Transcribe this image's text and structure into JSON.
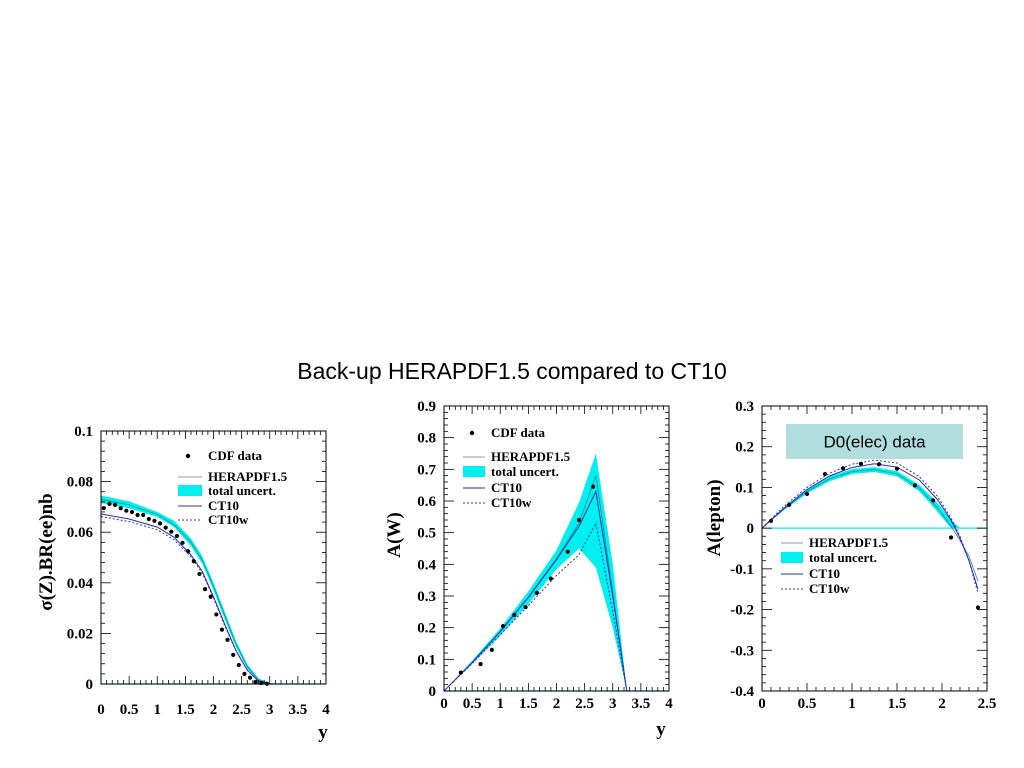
{
  "page": {
    "title": "Back-up HERAPDF1.5 compared to CT10"
  },
  "colors": {
    "band": "#00f0f0",
    "hera_line": "#1a8a8a",
    "ct10": "#2b2bb0",
    "ct10w": "#3030c0",
    "data": "#000000",
    "box": "#b0dede"
  },
  "chart_data": [
    {
      "type": "line",
      "ylabel": "σ(Z).BR(ee)nb",
      "xlabel": "y",
      "xlim": [
        0,
        4
      ],
      "ylim": [
        0,
        0.1
      ],
      "xticks": [
        0,
        0.5,
        1,
        1.5,
        2,
        2.5,
        3,
        3.5,
        4
      ],
      "xtick_labels": [
        "0",
        "0.5",
        "1",
        "1.5",
        "2",
        "2.5",
        "3",
        "3.5",
        "4"
      ],
      "yticks": [
        0,
        0.02,
        0.04,
        0.06,
        0.08,
        0.1
      ],
      "ytick_labels": [
        "0",
        "0.02",
        "0.04",
        "0.06",
        "0.08",
        "0.1"
      ],
      "legend": {
        "position": "top-right",
        "entries": [
          "CDF data",
          "HERAPDF1.5",
          "total uncert.",
          "CT10",
          "CT10w"
        ]
      },
      "band": {
        "x": [
          0,
          0.5,
          1,
          1.3,
          1.6,
          1.8,
          2.0,
          2.2,
          2.4,
          2.6,
          2.8,
          3.0,
          3.2,
          4.0
        ],
        "lower": [
          0.0715,
          0.0695,
          0.066,
          0.062,
          0.0545,
          0.0475,
          0.037,
          0.0255,
          0.0145,
          0.006,
          0.0012,
          0.0,
          0.0,
          0.0
        ],
        "upper": [
          0.0745,
          0.0722,
          0.068,
          0.0645,
          0.0575,
          0.0505,
          0.04,
          0.0285,
          0.017,
          0.0078,
          0.0022,
          0.0003,
          0.0,
          0.0
        ]
      },
      "series": [
        {
          "name": "HERAPDF1.5",
          "kind": "line",
          "x": [
            0,
            0.5,
            1,
            1.3,
            1.6,
            1.8,
            2.0,
            2.2,
            2.4,
            2.6,
            2.8,
            3.0,
            3.2,
            4.0
          ],
          "y": [
            0.073,
            0.0708,
            0.067,
            0.063,
            0.056,
            0.049,
            0.0385,
            0.027,
            0.0158,
            0.0069,
            0.0017,
            0.0001,
            0.0,
            0.0
          ]
        },
        {
          "name": "CT10",
          "kind": "line",
          "x": [
            0,
            0.5,
            1,
            1.3,
            1.6,
            1.8,
            2.0,
            2.2,
            2.4,
            2.6,
            2.8,
            3.0,
            3.2,
            4.0
          ],
          "y": [
            0.0672,
            0.0652,
            0.062,
            0.058,
            0.051,
            0.0445,
            0.0345,
            0.0235,
            0.0132,
            0.0055,
            0.0011,
            0.0,
            0.0,
            0.0
          ]
        },
        {
          "name": "CT10w",
          "kind": "dashed",
          "x": [
            0,
            0.5,
            1,
            1.3,
            1.6,
            1.8,
            2.0,
            2.2,
            2.4,
            2.6,
            2.8,
            3.0,
            3.2,
            4.0
          ],
          "y": [
            0.0662,
            0.0642,
            0.061,
            0.057,
            0.0502,
            0.0438,
            0.034,
            0.023,
            0.013,
            0.0054,
            0.0011,
            0.0,
            0.0,
            0.0
          ]
        },
        {
          "name": "CDF data",
          "kind": "points",
          "x": [
            0.05,
            0.15,
            0.25,
            0.35,
            0.45,
            0.55,
            0.65,
            0.75,
            0.85,
            0.95,
            1.05,
            1.15,
            1.25,
            1.35,
            1.45,
            1.55,
            1.65,
            1.75,
            1.85,
            1.95,
            2.05,
            2.15,
            2.25,
            2.35,
            2.45,
            2.55,
            2.65,
            2.75,
            2.85,
            2.95
          ],
          "y": [
            0.0695,
            0.0712,
            0.0708,
            0.0695,
            0.0685,
            0.068,
            0.0668,
            0.0668,
            0.0652,
            0.0645,
            0.0635,
            0.0618,
            0.0602,
            0.0585,
            0.0558,
            0.0525,
            0.0485,
            0.0435,
            0.0375,
            0.0345,
            0.0275,
            0.0215,
            0.0175,
            0.0115,
            0.0075,
            0.004,
            0.0025,
            0.0008,
            0.0004,
            0.0001
          ]
        }
      ]
    },
    {
      "type": "line",
      "ylabel": "A(W)",
      "xlabel": "y",
      "xlim": [
        0,
        4
      ],
      "ylim": [
        0,
        0.9
      ],
      "xticks": [
        0,
        0.5,
        1,
        1.5,
        2,
        2.5,
        3,
        3.5,
        4
      ],
      "xtick_labels": [
        "0",
        "0.5",
        "1",
        "1.5",
        "2",
        "2.5",
        "3",
        "3.5",
        "4"
      ],
      "yticks": [
        0,
        0.1,
        0.2,
        0.3,
        0.4,
        0.5,
        0.6,
        0.7,
        0.8,
        0.9
      ],
      "ytick_labels": [
        "0",
        "0.1",
        "0.2",
        "0.3",
        "0.4",
        "0.5",
        "0.6",
        "0.7",
        "0.8",
        "0.9"
      ],
      "legend": {
        "position": "top-left",
        "entries": [
          "CDF data",
          "HERAPDF1.5",
          "total uncert.",
          "CT10",
          "CT10w"
        ]
      },
      "band": {
        "x": [
          0,
          0.5,
          1.0,
          1.5,
          2.0,
          2.4,
          2.7,
          3.0,
          3.25,
          3.3,
          4.0
        ],
        "lower": [
          0.0,
          0.085,
          0.175,
          0.275,
          0.385,
          0.45,
          0.39,
          0.2,
          0.0,
          0.0,
          0.0
        ],
        "upper": [
          0.0,
          0.095,
          0.198,
          0.315,
          0.445,
          0.595,
          0.75,
          0.4,
          0.0,
          0.0,
          0.0
        ]
      },
      "series": [
        {
          "name": "HERAPDF1.5",
          "kind": "line",
          "x": [
            0,
            0.5,
            1.0,
            1.5,
            2.0,
            2.4,
            2.7,
            3.0,
            3.25,
            3.3,
            4.0
          ],
          "y": [
            0.0,
            0.09,
            0.188,
            0.297,
            0.418,
            0.53,
            0.68,
            0.31,
            0.0,
            0.0,
            0.0
          ]
        },
        {
          "name": "CT10",
          "kind": "line",
          "x": [
            0,
            0.5,
            1.0,
            1.5,
            2.0,
            2.4,
            2.7,
            3.0,
            3.25,
            3.3,
            4.0
          ],
          "y": [
            0.0,
            0.09,
            0.188,
            0.296,
            0.415,
            0.52,
            0.63,
            0.3,
            0.0,
            0.0,
            0.0
          ]
        },
        {
          "name": "CT10w",
          "kind": "dashed",
          "x": [
            0,
            0.5,
            1.0,
            1.5,
            2.0,
            2.4,
            2.7,
            3.0,
            3.25,
            3.3,
            4.0
          ],
          "y": [
            0.0,
            0.087,
            0.178,
            0.27,
            0.365,
            0.43,
            0.53,
            0.25,
            0.0,
            0.0,
            0.0
          ]
        },
        {
          "name": "CDF data",
          "kind": "points",
          "x": [
            0.3,
            0.65,
            0.85,
            1.05,
            1.25,
            1.45,
            1.65,
            1.9,
            2.2,
            2.4,
            2.65
          ],
          "y": [
            0.058,
            0.085,
            0.13,
            0.205,
            0.24,
            0.265,
            0.31,
            0.355,
            0.44,
            0.54,
            0.645
          ]
        }
      ]
    },
    {
      "type": "line",
      "ylabel": "A(lepton)",
      "xlim": [
        0,
        2.5
      ],
      "ylim": [
        -0.4,
        0.3
      ],
      "xticks": [
        0,
        0.5,
        1,
        1.5,
        2,
        2.5
      ],
      "xtick_labels": [
        "0",
        "0.5",
        "1",
        "1.5",
        "2",
        "2.5"
      ],
      "yticks": [
        -0.4,
        -0.3,
        -0.2,
        -0.1,
        0,
        0.1,
        0.2,
        0.3
      ],
      "ytick_labels": [
        "-0.4",
        "-0.3",
        "-0.2",
        "-0.1",
        "0",
        "0.1",
        "0.2",
        "0.3"
      ],
      "annotation": "D0(elec) data",
      "legend": {
        "position": "bottom-left",
        "entries": [
          "HERAPDF1.5",
          "total uncert.",
          "CT10",
          "CT10w"
        ]
      },
      "band": {
        "x": [
          0,
          0.25,
          0.5,
          0.75,
          1.0,
          1.25,
          1.5,
          1.75,
          1.95,
          2.1,
          2.2,
          2.3,
          2.4
        ],
        "lower": [
          0.0,
          0.045,
          0.085,
          0.115,
          0.133,
          0.138,
          0.127,
          0.09,
          0.04,
          0.0,
          0.0,
          0.0,
          0.0
        ],
        "upper": [
          0.0,
          0.052,
          0.095,
          0.127,
          0.145,
          0.15,
          0.14,
          0.106,
          0.062,
          0.02,
          0.0,
          0.0,
          0.0
        ]
      },
      "series": [
        {
          "name": "HERAPDF1.5",
          "kind": "line",
          "x": [
            0,
            0.25,
            0.5,
            0.75,
            1.0,
            1.25,
            1.5,
            1.75,
            1.95,
            2.1,
            2.2,
            2.3,
            2.4
          ],
          "y": [
            0.0,
            0.048,
            0.09,
            0.121,
            0.139,
            0.144,
            0.133,
            0.098,
            0.05,
            0.005,
            -0.03,
            -0.07,
            -0.13
          ]
        },
        {
          "name": "CT10",
          "kind": "line",
          "x": [
            0,
            0.25,
            0.5,
            0.75,
            1.0,
            1.25,
            1.5,
            1.75,
            1.95,
            2.1,
            2.2,
            2.3,
            2.4
          ],
          "y": [
            0.0,
            0.05,
            0.095,
            0.128,
            0.149,
            0.158,
            0.15,
            0.118,
            0.07,
            0.02,
            -0.025,
            -0.08,
            -0.15
          ]
        },
        {
          "name": "CT10w",
          "kind": "dashed",
          "x": [
            0,
            0.25,
            0.5,
            0.75,
            1.0,
            1.25,
            1.5,
            1.75,
            1.95,
            2.1,
            2.2,
            2.3,
            2.4
          ],
          "y": [
            0.0,
            0.055,
            0.1,
            0.135,
            0.157,
            0.167,
            0.16,
            0.126,
            0.078,
            0.025,
            -0.02,
            -0.08,
            -0.16
          ]
        },
        {
          "name": "D0 data",
          "kind": "points",
          "x": [
            0.1,
            0.3,
            0.5,
            0.7,
            0.9,
            1.1,
            1.3,
            1.5,
            1.7,
            1.9,
            2.1,
            2.4
          ],
          "y": [
            0.018,
            0.057,
            0.084,
            0.133,
            0.147,
            0.158,
            0.157,
            0.146,
            0.105,
            0.068,
            -0.023,
            -0.195
          ]
        }
      ]
    }
  ]
}
